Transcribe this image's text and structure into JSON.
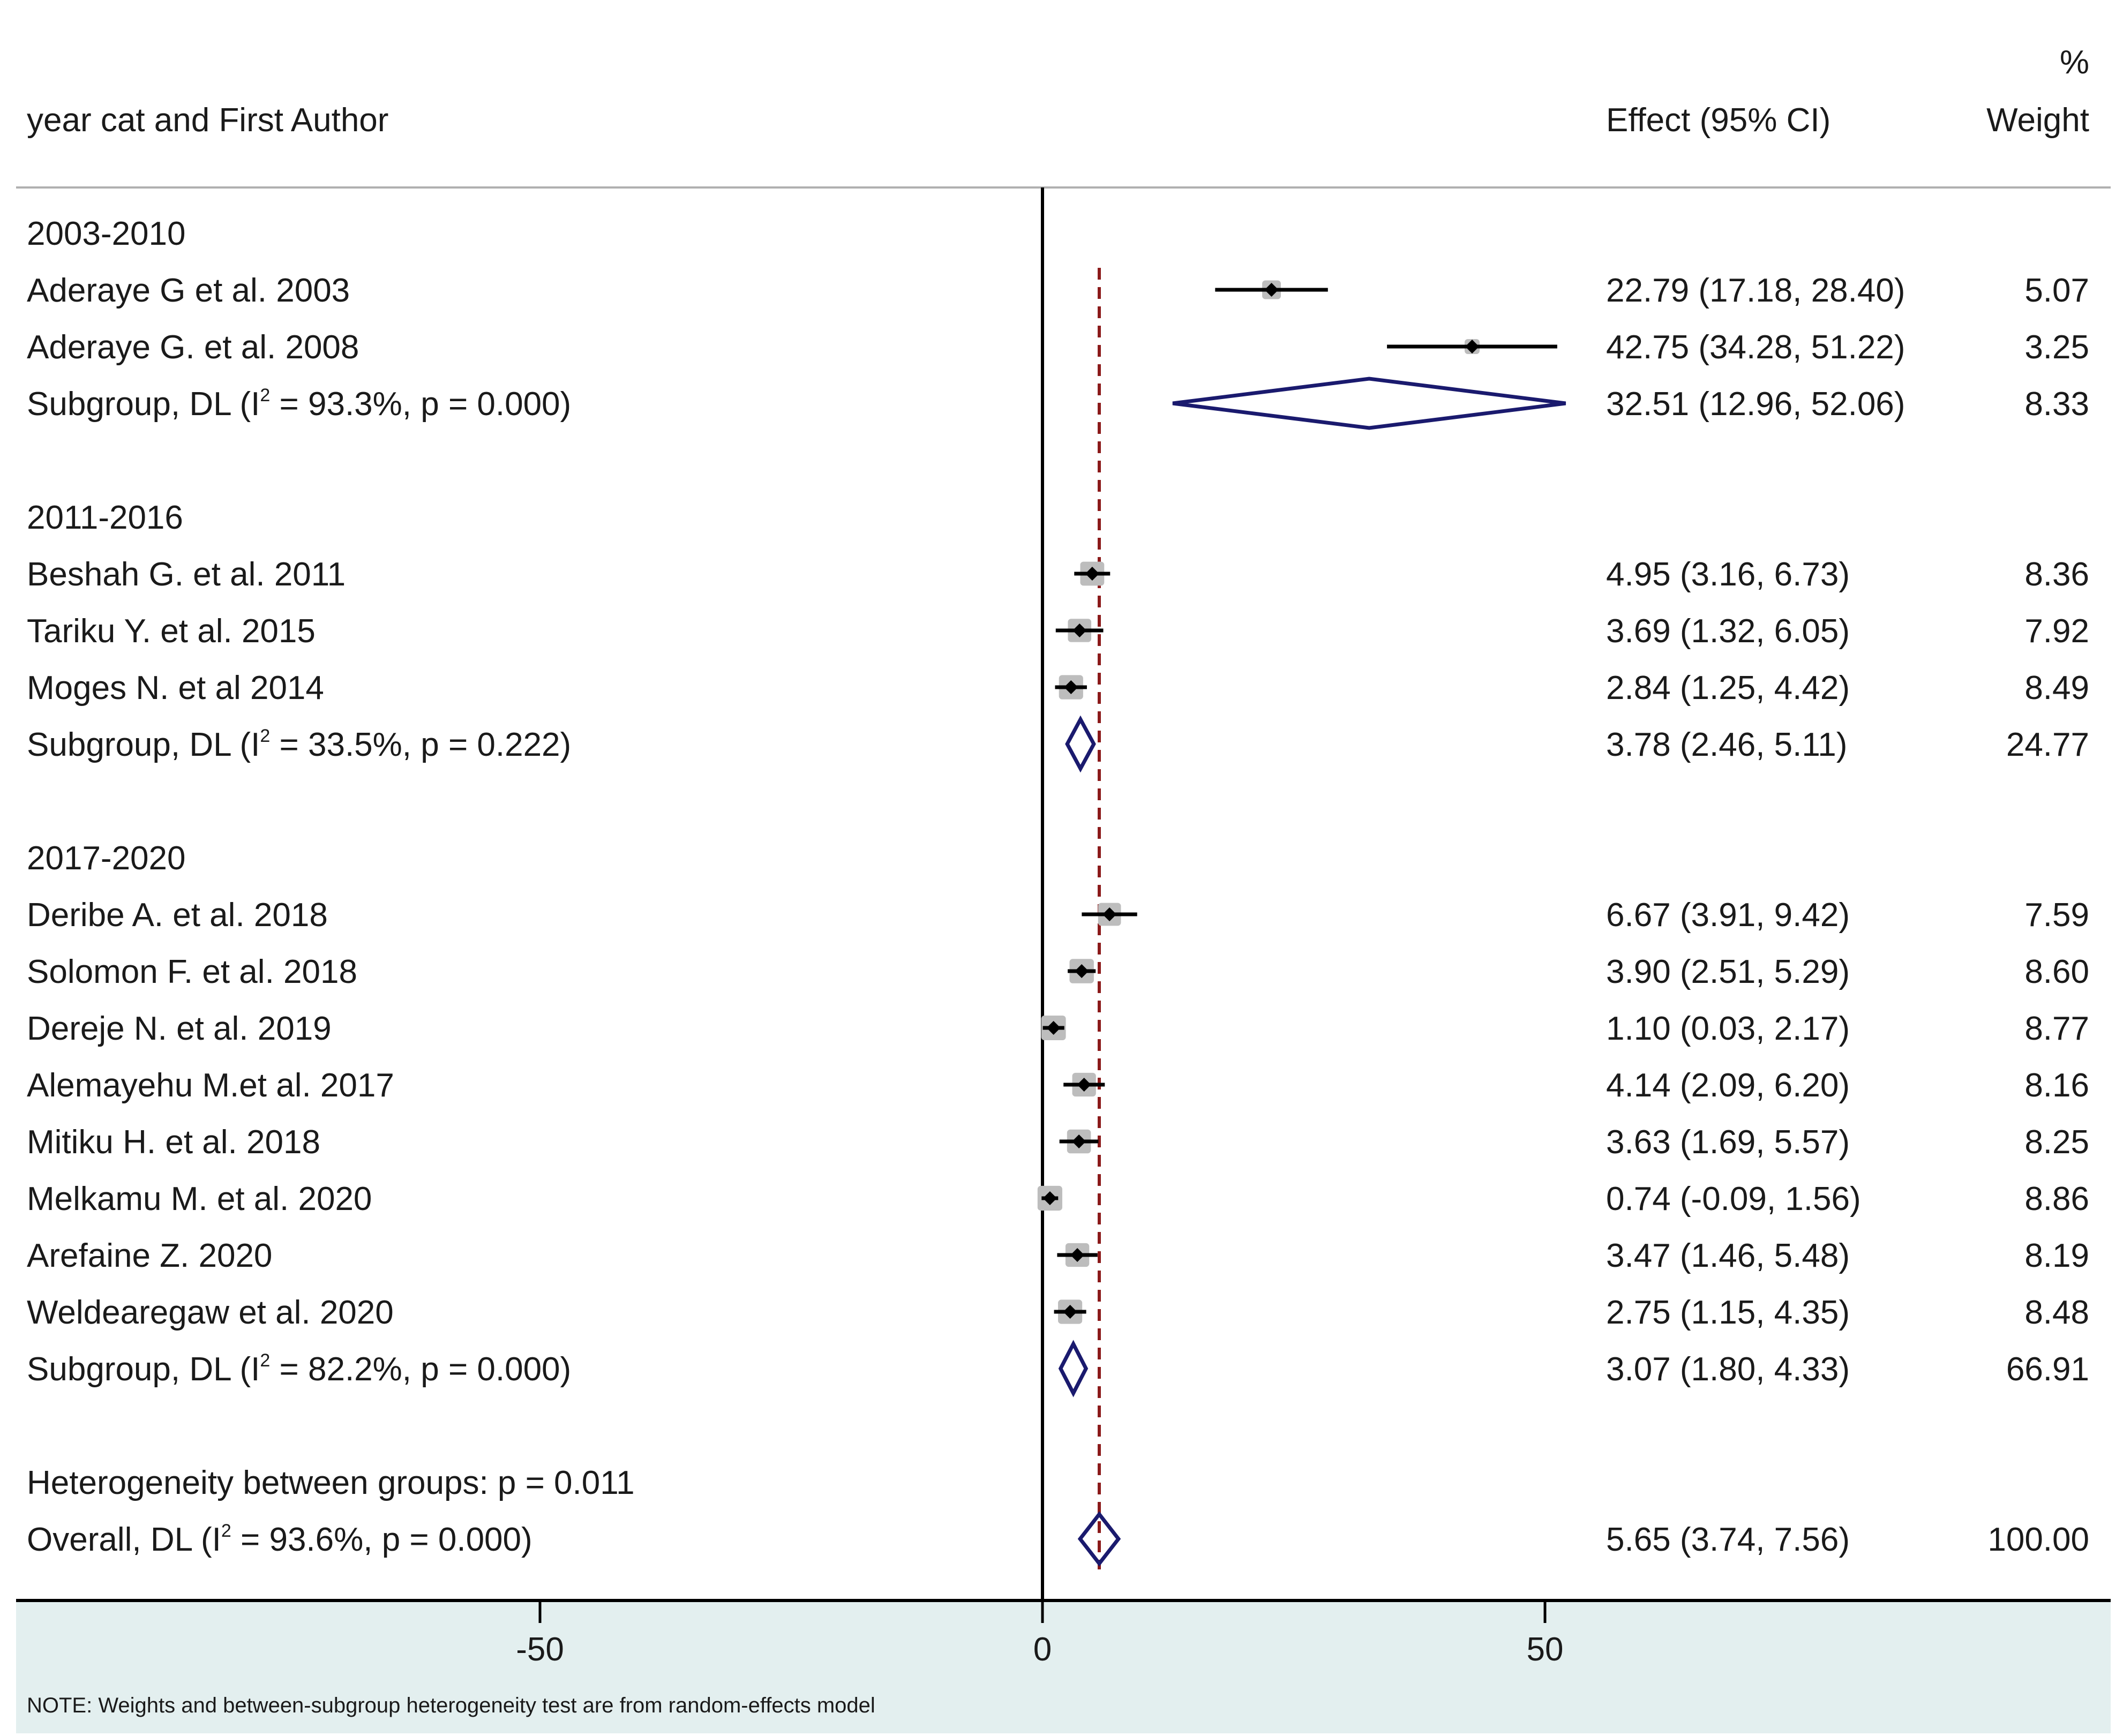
{
  "chart_data": {
    "type": "forest",
    "header": {
      "study_col": "year cat and First Author",
      "effect_col": "Effect (95% CI)",
      "weight_col_line1": "%",
      "weight_col_line2": "Weight"
    },
    "xaxis": {
      "ticks": [
        -50,
        0,
        50
      ],
      "tick_labels": [
        "-50",
        "0",
        "50"
      ],
      "range": [
        -101,
        103
      ]
    },
    "overall_effect": 5.65,
    "rows": [
      {
        "kind": "group",
        "label": "2003-2010"
      },
      {
        "kind": "study",
        "label": "Aderaye G et al. 2003",
        "effect": 22.79,
        "lower": 17.18,
        "upper": 28.4,
        "weight": 5.07,
        "ci_text": "22.79 (17.18, 28.40)",
        "weight_text": "5.07"
      },
      {
        "kind": "study",
        "label": "Aderaye G. et al. 2008",
        "effect": 42.75,
        "lower": 34.28,
        "upper": 51.22,
        "weight": 3.25,
        "ci_text": "42.75 (34.28, 51.22)",
        "weight_text": "3.25"
      },
      {
        "kind": "subgroup",
        "label_pre": "Subgroup, DL (I",
        "label_sup": "2",
        "label_post": " = 93.3%, p = 0.000)",
        "effect": 32.51,
        "lower": 12.96,
        "upper": 52.06,
        "weight": 8.33,
        "ci_text": "32.51 (12.96, 52.06)",
        "weight_text": "8.33"
      },
      {
        "kind": "blank"
      },
      {
        "kind": "group",
        "label": "2011-2016"
      },
      {
        "kind": "study",
        "label": "Beshah G. et al. 2011",
        "effect": 4.95,
        "lower": 3.16,
        "upper": 6.73,
        "weight": 8.36,
        "ci_text": "4.95 (3.16, 6.73)",
        "weight_text": "8.36"
      },
      {
        "kind": "study",
        "label": "Tariku Y. et al. 2015",
        "effect": 3.69,
        "lower": 1.32,
        "upper": 6.05,
        "weight": 7.92,
        "ci_text": "3.69 (1.32, 6.05)",
        "weight_text": "7.92"
      },
      {
        "kind": "study",
        "label": "Moges N. et al 2014",
        "effect": 2.84,
        "lower": 1.25,
        "upper": 4.42,
        "weight": 8.49,
        "ci_text": "2.84 (1.25, 4.42)",
        "weight_text": "8.49"
      },
      {
        "kind": "subgroup",
        "label_pre": "Subgroup, DL (I",
        "label_sup": "2",
        "label_post": " = 33.5%, p = 0.222)",
        "effect": 3.78,
        "lower": 2.46,
        "upper": 5.11,
        "weight": 24.77,
        "ci_text": "3.78 (2.46, 5.11)",
        "weight_text": "24.77"
      },
      {
        "kind": "blank"
      },
      {
        "kind": "group",
        "label": "2017-2020"
      },
      {
        "kind": "study",
        "label": "Deribe A.  et al. 2018",
        "effect": 6.67,
        "lower": 3.91,
        "upper": 9.42,
        "weight": 7.59,
        "ci_text": "6.67 (3.91, 9.42)",
        "weight_text": "7.59"
      },
      {
        "kind": "study",
        "label": "Solomon F. et al. 2018",
        "effect": 3.9,
        "lower": 2.51,
        "upper": 5.29,
        "weight": 8.6,
        "ci_text": "3.90 (2.51, 5.29)",
        "weight_text": "8.60"
      },
      {
        "kind": "study",
        "label": "Dereje N. et al. 2019",
        "effect": 1.1,
        "lower": 0.03,
        "upper": 2.17,
        "weight": 8.77,
        "ci_text": "1.10 (0.03, 2.17)",
        "weight_text": "8.77"
      },
      {
        "kind": "study",
        "label": "Alemayehu M.et al. 2017",
        "effect": 4.14,
        "lower": 2.09,
        "upper": 6.2,
        "weight": 8.16,
        "ci_text": "4.14 (2.09, 6.20)",
        "weight_text": "8.16"
      },
      {
        "kind": "study",
        "label": "Mitiku H. et al. 2018",
        "effect": 3.63,
        "lower": 1.69,
        "upper": 5.57,
        "weight": 8.25,
        "ci_text": "3.63 (1.69, 5.57)",
        "weight_text": "8.25"
      },
      {
        "kind": "study",
        "label": "Melkamu M. et al. 2020",
        "effect": 0.74,
        "lower": -0.09,
        "upper": 1.56,
        "weight": 8.86,
        "ci_text": "0.74 (-0.09, 1.56)",
        "weight_text": "8.86"
      },
      {
        "kind": "study",
        "label": "Arefaine Z. 2020",
        "effect": 3.47,
        "lower": 1.46,
        "upper": 5.48,
        "weight": 8.19,
        "ci_text": "3.47 (1.46, 5.48)",
        "weight_text": "8.19"
      },
      {
        "kind": "study",
        "label": "Weldearegaw et al. 2020",
        "effect": 2.75,
        "lower": 1.15,
        "upper": 4.35,
        "weight": 8.48,
        "ci_text": "2.75 (1.15, 4.35)",
        "weight_text": "8.48"
      },
      {
        "kind": "subgroup",
        "label_pre": "Subgroup, DL (I",
        "label_sup": "2",
        "label_post": " = 82.2%, p = 0.000)",
        "effect": 3.07,
        "lower": 1.8,
        "upper": 4.33,
        "weight": 66.91,
        "ci_text": "3.07 (1.80, 4.33)",
        "weight_text": "66.91"
      },
      {
        "kind": "blank"
      },
      {
        "kind": "text",
        "label": "Heterogeneity between groups: p = 0.011"
      },
      {
        "kind": "overall",
        "label_pre": "Overall, DL (I",
        "label_sup": "2",
        "label_post": " = 93.6%, p = 0.000)",
        "effect": 5.65,
        "lower": 3.74,
        "upper": 7.56,
        "weight": 100.0,
        "ci_text": "5.65 (3.74, 7.56)",
        "weight_text": "100.00"
      }
    ],
    "note": "NOTE: Weights and between-subgroup heterogeneity test are from random-effects model",
    "colors": {
      "ci_line": "#000000",
      "weight_box": "#bdbdbd",
      "point": "#000000",
      "diamond": "#1a1a6e",
      "overall_line": "#8b1a1a",
      "axis_panel_bg": "#e3efef",
      "text": "#1a1a1a"
    }
  }
}
